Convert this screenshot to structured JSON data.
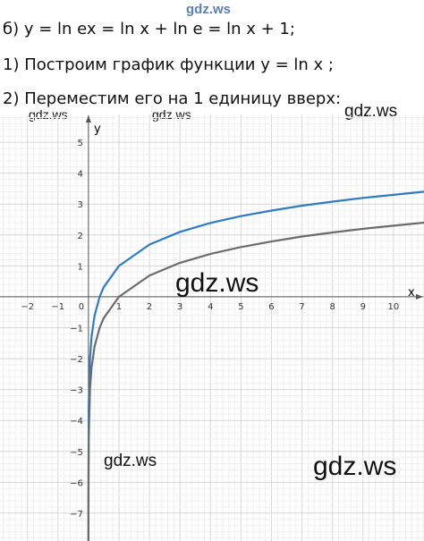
{
  "header": {
    "top_watermark": "gdz.ws",
    "line1": "б) y = ln ex = ln x + ln e = ln x + 1;",
    "line2": "1) Построим график функции y = ln x ;",
    "line3": "2) Переместим его на 1 единицу вверх:"
  },
  "watermarks": [
    "gdz.ws",
    "gdz.ws",
    "gdz.ws",
    "gdz.ws",
    "gdz.ws",
    "gdz.ws"
  ],
  "chart_data": {
    "type": "line",
    "title": "",
    "xlabel": "x",
    "ylabel": "y",
    "xlim": [
      -2.9,
      11
    ],
    "ylim": [
      -7.9,
      5.9
    ],
    "xticks": [
      -2,
      -1,
      0,
      1,
      2,
      3,
      4,
      5,
      6,
      7,
      8,
      9,
      10
    ],
    "yticks": [
      -7,
      -6,
      -5,
      -4,
      -3,
      -2,
      -1,
      1,
      2,
      3,
      4,
      5
    ],
    "grid": true,
    "series": [
      {
        "function": "ln x + 1",
        "color": "#2e7bc4",
        "x": [
          0.0004,
          0.001,
          0.01,
          0.05,
          0.1,
          0.2,
          0.368,
          0.5,
          1,
          2,
          3,
          4,
          5,
          6,
          7,
          8,
          9,
          10,
          11
        ],
        "values": [
          -6.82,
          -5.91,
          -3.61,
          -2.0,
          -1.3,
          -0.61,
          0.0,
          0.31,
          1.0,
          1.69,
          2.1,
          2.39,
          2.61,
          2.79,
          2.95,
          3.08,
          3.2,
          3.3,
          3.4
        ]
      },
      {
        "function": "ln x",
        "color": "#6b6b6b",
        "x": [
          0.0004,
          0.001,
          0.01,
          0.05,
          0.1,
          0.2,
          0.368,
          0.5,
          1,
          2,
          3,
          4,
          5,
          6,
          7,
          8,
          9,
          10,
          11
        ],
        "values": [
          -7.82,
          -6.91,
          -4.61,
          -3.0,
          -2.3,
          -1.61,
          -1.0,
          -0.69,
          0.0,
          0.69,
          1.1,
          1.39,
          1.61,
          1.79,
          1.95,
          2.08,
          2.2,
          2.3,
          2.4
        ]
      }
    ]
  }
}
